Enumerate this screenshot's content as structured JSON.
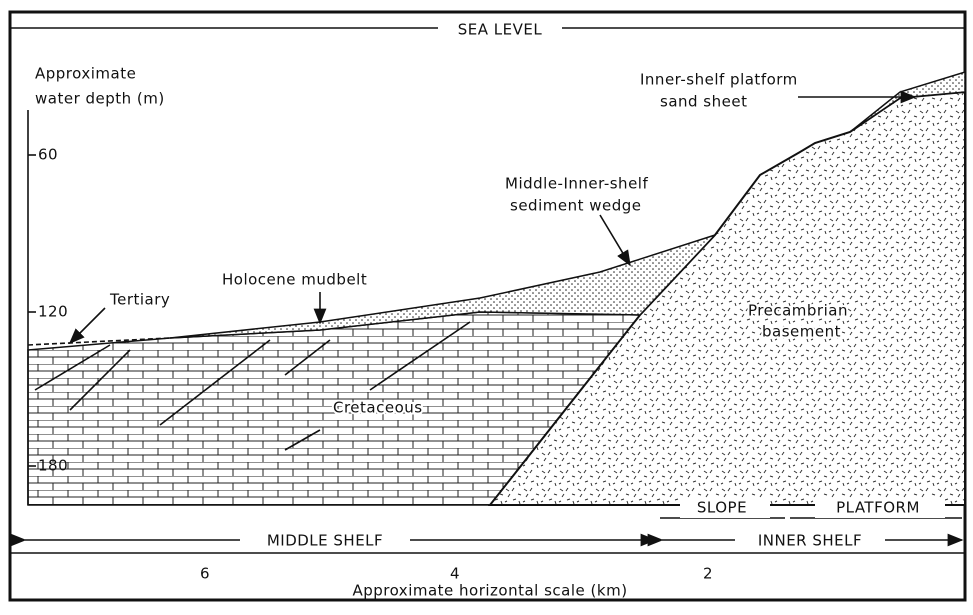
{
  "header": {
    "title": "SEA LEVEL"
  },
  "depth_axis": {
    "title": [
      "Approximate",
      "water depth (m)"
    ],
    "ticks": [
      60,
      120,
      180
    ]
  },
  "labels": {
    "sand_sheet": [
      "Inner-shelf platform",
      "sand sheet"
    ],
    "wedge": [
      "Middle-Inner-shelf",
      "sediment wedge"
    ],
    "mudbelt": "Holocene mudbelt",
    "tertiary": "Tertiary",
    "basement": [
      "Precambrian",
      "basement"
    ],
    "cretaceous": "Cretaceous"
  },
  "zones": {
    "slope": "SLOPE",
    "platform": "PLATFORM",
    "middle_shelf": "MIDDLE SHELF",
    "inner_shelf": "INNER SHELF"
  },
  "horizontal_scale": {
    "ticks": [
      6,
      4,
      2
    ],
    "title": "Approximate horizontal scale (km)"
  }
}
